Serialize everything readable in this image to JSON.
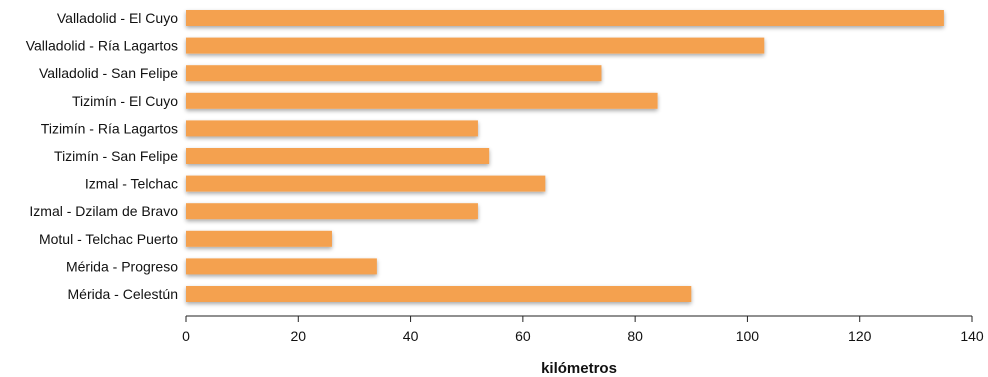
{
  "chart_data": {
    "type": "bar",
    "orientation": "horizontal",
    "categories": [
      "Valladolid - El Cuyo",
      "Valladolid - Ría Lagartos",
      "Valladolid - San Felipe",
      "Tizimín - El Cuyo",
      "Tizimín - Ría Lagartos",
      "Tizimín - San Felipe",
      "Izmal - Telchac",
      "Izmal - Dzilam de Bravo",
      "Motul - Telchac Puerto",
      "Mérida - Progreso",
      "Mérida - Celestún"
    ],
    "values": [
      135,
      103,
      74,
      84,
      52,
      54,
      64,
      52,
      26,
      34,
      90
    ],
    "title": "",
    "xlabel": "kilómetros",
    "ylabel": "",
    "xlim": [
      0,
      140
    ],
    "xticks": [
      "0",
      "20",
      "40",
      "60",
      "80",
      "100",
      "120",
      "140"
    ],
    "xtick_values": [
      0,
      20,
      40,
      60,
      80,
      100,
      120,
      140
    ],
    "grid": false,
    "bar_color": "#f4a14f",
    "axis_color": "#222222"
  }
}
